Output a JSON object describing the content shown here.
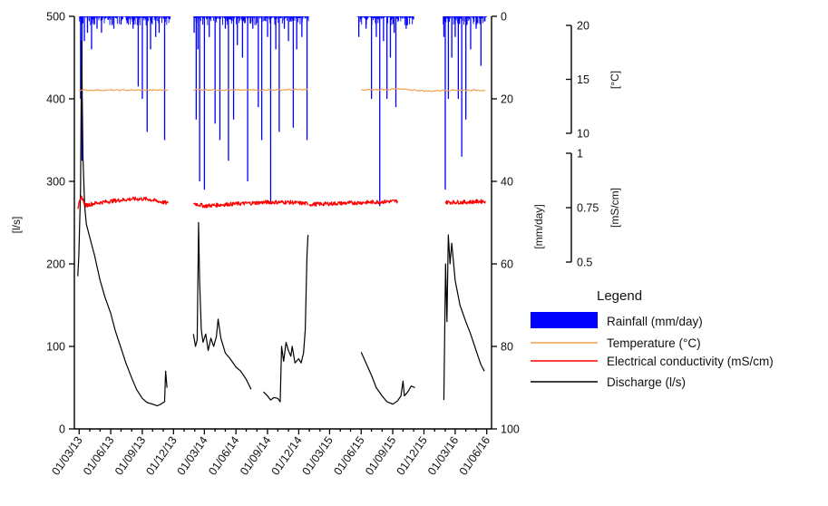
{
  "chart_data": {
    "type": "line",
    "title": "",
    "x_ticks": [
      "01/03/13",
      "01/06/13",
      "01/09/13",
      "01/12/13",
      "01/03/14",
      "01/06/14",
      "01/09/14",
      "01/12/14",
      "01/03/15",
      "01/06/15",
      "01/09/15",
      "01/12/15",
      "01/03/16",
      "01/06/16"
    ],
    "x_range": [
      "2013-02-15",
      "2016-06-15"
    ],
    "axes": {
      "discharge": {
        "label": "[l/s]",
        "range": [
          0,
          500
        ],
        "ticks": [
          "0",
          "100",
          "200",
          "300",
          "400",
          "500"
        ]
      },
      "rainfall": {
        "label": "[mm/day]",
        "range": [
          0,
          100
        ],
        "inverted": true,
        "ticks": [
          "0",
          "20",
          "40",
          "60",
          "80",
          "100"
        ]
      },
      "temperature": {
        "label": "[°C]",
        "range": [
          10,
          20
        ],
        "ticks": [
          "10",
          "15",
          "20"
        ]
      },
      "conductivity": {
        "label": "[mS/cm]",
        "range": [
          0.5,
          1
        ],
        "ticks": [
          "0.5",
          "0.75",
          "1"
        ]
      }
    },
    "legend": {
      "title": "Legend",
      "items": [
        {
          "label": "Rainfall (mm/day)",
          "color": "#0000ff",
          "kind": "bar"
        },
        {
          "label": "Temperature (°C)",
          "color": "#f0a050",
          "kind": "line"
        },
        {
          "label": "Electrical conductivity (mS/cm)",
          "color": "#ff0000",
          "kind": "line"
        },
        {
          "label": "Discharge (l/s)",
          "color": "#000000",
          "kind": "line"
        }
      ]
    },
    "series": [
      {
        "name": "Discharge (l/s)",
        "axis": "discharge",
        "color": "#000000",
        "segments": [
          [
            [
              "2013-02-25",
              185
            ],
            [
              "2013-02-28",
              210
            ],
            [
              "2013-03-05",
              290
            ],
            [
              "2013-03-08",
              470
            ],
            [
              "2013-03-12",
              330
            ],
            [
              "2013-03-17",
              270
            ],
            [
              "2013-03-22",
              248
            ],
            [
              "2013-04-01",
              232
            ],
            [
              "2013-04-15",
              210
            ],
            [
              "2013-05-01",
              180
            ],
            [
              "2013-05-15",
              160
            ],
            [
              "2013-06-01",
              140
            ],
            [
              "2013-06-15",
              118
            ],
            [
              "2013-07-01",
              98
            ],
            [
              "2013-07-15",
              80
            ],
            [
              "2013-08-01",
              62
            ],
            [
              "2013-08-15",
              48
            ],
            [
              "2013-09-01",
              37
            ],
            [
              "2013-09-15",
              32
            ],
            [
              "2013-10-01",
              30
            ],
            [
              "2013-10-15",
              28
            ],
            [
              "2013-10-25",
              30
            ],
            [
              "2013-11-05",
              33
            ],
            [
              "2013-11-08",
              70
            ],
            [
              "2013-11-12",
              50
            ]
          ],
          [
            [
              "2014-01-28",
              115
            ],
            [
              "2014-02-03",
              100
            ],
            [
              "2014-02-08",
              108
            ],
            [
              "2014-02-12",
              250
            ],
            [
              "2014-02-15",
              180
            ],
            [
              "2014-02-20",
              120
            ],
            [
              "2014-02-25",
              105
            ],
            [
              "2014-03-05",
              115
            ],
            [
              "2014-03-12",
              95
            ],
            [
              "2014-03-20",
              110
            ],
            [
              "2014-03-28",
              100
            ],
            [
              "2014-04-05",
              112
            ],
            [
              "2014-04-10",
              133
            ],
            [
              "2014-04-18",
              110
            ],
            [
              "2014-05-01",
              92
            ],
            [
              "2014-05-15",
              85
            ],
            [
              "2014-06-01",
              75
            ],
            [
              "2014-06-15",
              70
            ],
            [
              "2014-07-01",
              60
            ],
            [
              "2014-07-15",
              48
            ]
          ],
          [
            [
              "2014-08-20",
              45
            ],
            [
              "2014-09-01",
              40
            ],
            [
              "2014-09-10",
              35
            ],
            [
              "2014-09-20",
              38
            ],
            [
              "2014-10-01",
              37
            ],
            [
              "2014-10-08",
              33
            ],
            [
              "2014-10-12",
              100
            ],
            [
              "2014-10-18",
              82
            ],
            [
              "2014-10-25",
              105
            ],
            [
              "2014-11-01",
              95
            ],
            [
              "2014-11-08",
              88
            ],
            [
              "2014-11-12",
              100
            ],
            [
              "2014-11-20",
              80
            ],
            [
              "2014-12-01",
              85
            ],
            [
              "2014-12-08",
              80
            ],
            [
              "2014-12-15",
              92
            ],
            [
              "2014-12-20",
              120
            ],
            [
              "2014-12-25",
              210
            ],
            [
              "2014-12-28",
              235
            ]
          ],
          [
            [
              "2015-06-01",
              93
            ],
            [
              "2015-06-15",
              80
            ],
            [
              "2015-07-01",
              65
            ],
            [
              "2015-07-15",
              50
            ],
            [
              "2015-08-01",
              40
            ],
            [
              "2015-08-15",
              33
            ],
            [
              "2015-09-01",
              30
            ],
            [
              "2015-09-15",
              34
            ],
            [
              "2015-09-25",
              40
            ],
            [
              "2015-10-01",
              58
            ],
            [
              "2015-10-05",
              40
            ],
            [
              "2015-10-15",
              45
            ],
            [
              "2015-10-25",
              52
            ],
            [
              "2015-11-05",
              50
            ]
          ],
          [
            [
              "2016-01-28",
              35
            ],
            [
              "2016-02-02",
              200
            ],
            [
              "2016-02-06",
              130
            ],
            [
              "2016-02-10",
              235
            ],
            [
              "2016-02-15",
              200
            ],
            [
              "2016-02-20",
              225
            ],
            [
              "2016-03-01",
              180
            ],
            [
              "2016-03-15",
              150
            ],
            [
              "2016-04-01",
              130
            ],
            [
              "2016-04-15",
              115
            ],
            [
              "2016-05-01",
              95
            ],
            [
              "2016-05-15",
              78
            ],
            [
              "2016-05-25",
              70
            ]
          ]
        ]
      },
      {
        "name": "Temperature (°C)",
        "axis": "temperature",
        "color": "#f0a050",
        "segments": [
          [
            [
              "2013-02-28",
              14.0
            ],
            [
              "2013-06-01",
              14.0
            ],
            [
              "2013-09-01",
              14.0
            ],
            [
              "2013-11-15",
              14.0
            ]
          ],
          [
            [
              "2014-01-28",
              14.05
            ],
            [
              "2014-06-01",
              14.0
            ],
            [
              "2014-12-28",
              14.05
            ]
          ],
          [
            [
              "2015-06-01",
              14.0
            ],
            [
              "2015-09-15",
              14.1
            ],
            [
              "2015-11-05",
              14.0
            ],
            [
              "2015-12-15",
              13.9
            ],
            [
              "2016-02-01",
              14.0
            ],
            [
              "2016-05-28",
              14.0
            ]
          ]
        ]
      },
      {
        "name": "Electrical conductivity (mS/cm)",
        "axis": "conductivity",
        "color": "#ff0000",
        "segments": [
          [
            [
              "2013-02-25",
              0.75
            ],
            [
              "2013-03-08",
              0.8
            ],
            [
              "2013-03-20",
              0.76
            ],
            [
              "2013-04-15",
              0.77
            ],
            [
              "2013-06-01",
              0.78
            ],
            [
              "2013-08-01",
              0.79
            ],
            [
              "2013-09-15",
              0.79
            ],
            [
              "2013-11-15",
              0.77
            ]
          ],
          [
            [
              "2014-01-28",
              0.77
            ],
            [
              "2014-03-01",
              0.758
            ],
            [
              "2014-05-01",
              0.765
            ],
            [
              "2014-07-01",
              0.77
            ],
            [
              "2014-09-01",
              0.775
            ],
            [
              "2014-11-01",
              0.775
            ],
            [
              "2014-12-28",
              0.768
            ]
          ],
          [
            [
              "2015-01-01",
              0.765
            ],
            [
              "2015-04-01",
              0.77
            ],
            [
              "2015-07-01",
              0.775
            ],
            [
              "2015-09-15",
              0.78
            ]
          ],
          [
            [
              "2016-02-01",
              0.775
            ],
            [
              "2016-04-01",
              0.775
            ],
            [
              "2016-05-28",
              0.78
            ]
          ]
        ]
      },
      {
        "name": "Rainfall (mm/day)",
        "axis": "rainfall",
        "color": "#0000ff",
        "kind": "bar",
        "windows": [
          [
            "2013-03-01",
            "2013-11-20"
          ],
          [
            "2014-01-28",
            "2014-12-28"
          ],
          [
            "2015-05-20",
            "2015-10-31"
          ],
          [
            "2016-01-25",
            "2016-05-31"
          ]
        ],
        "events": [
          [
            "2013-03-05",
            20
          ],
          [
            "2013-03-09",
            35
          ],
          [
            "2013-03-16",
            6
          ],
          [
            "2013-03-25",
            4
          ],
          [
            "2013-04-06",
            8
          ],
          [
            "2013-04-22",
            3
          ],
          [
            "2013-05-05",
            4
          ],
          [
            "2013-06-10",
            3
          ],
          [
            "2013-07-01",
            2
          ],
          [
            "2013-08-05",
            3
          ],
          [
            "2013-08-20",
            17
          ],
          [
            "2013-09-01",
            20
          ],
          [
            "2013-09-15",
            28
          ],
          [
            "2013-09-25",
            8
          ],
          [
            "2013-10-10",
            5
          ],
          [
            "2013-10-20",
            4
          ],
          [
            "2013-11-05",
            30
          ],
          [
            "2014-01-30",
            4
          ],
          [
            "2014-02-05",
            25
          ],
          [
            "2014-02-10",
            8
          ],
          [
            "2014-02-15",
            40
          ],
          [
            "2014-03-01",
            42
          ],
          [
            "2014-03-15",
            5
          ],
          [
            "2014-04-01",
            26
          ],
          [
            "2014-04-15",
            30
          ],
          [
            "2014-05-01",
            3
          ],
          [
            "2014-05-10",
            35
          ],
          [
            "2014-05-25",
            25
          ],
          [
            "2014-06-05",
            7
          ],
          [
            "2014-06-20",
            10
          ],
          [
            "2014-07-05",
            40
          ],
          [
            "2014-07-20",
            3
          ],
          [
            "2014-08-05",
            22
          ],
          [
            "2014-08-15",
            30
          ],
          [
            "2014-09-01",
            5
          ],
          [
            "2014-09-10",
            45
          ],
          [
            "2014-09-25",
            8
          ],
          [
            "2014-10-05",
            28
          ],
          [
            "2014-10-20",
            3
          ],
          [
            "2014-11-01",
            6
          ],
          [
            "2014-11-15",
            27
          ],
          [
            "2014-11-25",
            8
          ],
          [
            "2014-12-10",
            5
          ],
          [
            "2014-12-25",
            30
          ],
          [
            "2015-05-25",
            5
          ],
          [
            "2015-06-15",
            3
          ],
          [
            "2015-07-01",
            20
          ],
          [
            "2015-07-15",
            5
          ],
          [
            "2015-07-25",
            46
          ],
          [
            "2015-08-05",
            6
          ],
          [
            "2015-08-15",
            20
          ],
          [
            "2015-08-25",
            10
          ],
          [
            "2015-09-05",
            4
          ],
          [
            "2015-09-10",
            22
          ],
          [
            "2015-10-10",
            3
          ],
          [
            "2016-01-28",
            5
          ],
          [
            "2016-02-01",
            42
          ],
          [
            "2016-02-10",
            20
          ],
          [
            "2016-02-20",
            10
          ],
          [
            "2016-03-01",
            5
          ],
          [
            "2016-03-10",
            20
          ],
          [
            "2016-03-20",
            34
          ],
          [
            "2016-04-01",
            25
          ],
          [
            "2016-04-15",
            8
          ],
          [
            "2016-05-01",
            3
          ],
          [
            "2016-05-15",
            12
          ]
        ]
      }
    ]
  }
}
